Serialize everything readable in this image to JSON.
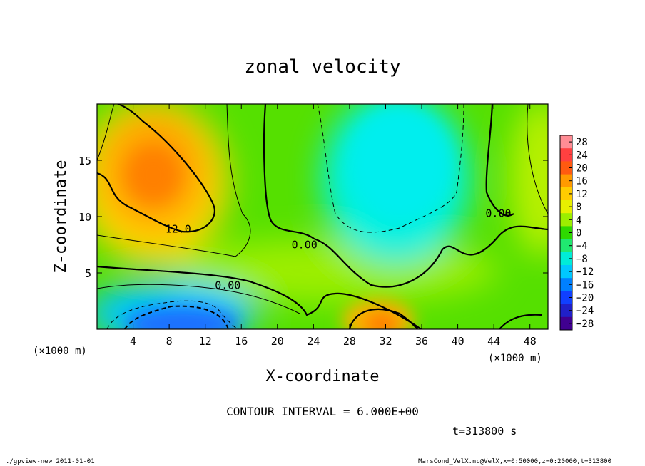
{
  "chart_data": {
    "type": "heatmap",
    "title": "zonal velocity",
    "xlabel": "X-coordinate",
    "ylabel": "Z-coordinate",
    "x_unit_label": "(×1000 m)",
    "y_unit_label": "(×1000 m)",
    "x_ticks": [
      4,
      8,
      12,
      16,
      20,
      24,
      28,
      32,
      36,
      40,
      44,
      48
    ],
    "y_ticks": [
      5,
      10,
      15
    ],
    "xlim": [
      0,
      50
    ],
    "ylim": [
      0,
      20
    ],
    "contour_interval_text": "CONTOUR INTERVAL = 6.000E+00",
    "time_text": "t=313800 s",
    "contour_labels": [
      {
        "text": "12.0",
        "x": 9,
        "z": 8.9
      },
      {
        "text": "0.00",
        "x": 14.5,
        "z": 3.9
      },
      {
        "text": "0.00",
        "x": 23,
        "z": 7.5
      },
      {
        "text": "0.00",
        "x": 44.5,
        "z": 10.3
      }
    ],
    "colorbar": {
      "labels": [
        "28",
        "24",
        "20",
        "16",
        "12",
        "8",
        "4",
        "0",
        "−4",
        "−8",
        "−12",
        "−16",
        "−20",
        "−24",
        "−28"
      ],
      "colors": [
        "#ff8c94",
        "#ff4040",
        "#ff5a10",
        "#ff9a00",
        "#ffcc00",
        "#e8f000",
        "#9cee00",
        "#2ed900",
        "#20e870",
        "#00ecd8",
        "#00c8ff",
        "#0080ff",
        "#1040ff",
        "#2020c8",
        "#400090"
      ]
    },
    "features": [
      {
        "name": "upper-left maximum",
        "x": 8,
        "z": 13,
        "value": 18
      },
      {
        "name": "upper-middle minimum",
        "x": 32,
        "z": 15,
        "value": -8
      },
      {
        "name": "lower-left minimum",
        "x": 10,
        "z": 1.2,
        "value": -14
      },
      {
        "name": "lower-middle maximum",
        "x": 32,
        "z": 1,
        "value": 16
      },
      {
        "name": "middle band",
        "x": 25,
        "z": 7,
        "value": 4
      },
      {
        "name": "right-edge upper",
        "x": 48,
        "z": 13,
        "value": 8
      }
    ]
  },
  "footer": {
    "left": "./gpview-new   2011-01-01",
    "right": "MarsCond_VelX.nc@VelX,x=0:50000,z=0:20000,t=313800"
  }
}
